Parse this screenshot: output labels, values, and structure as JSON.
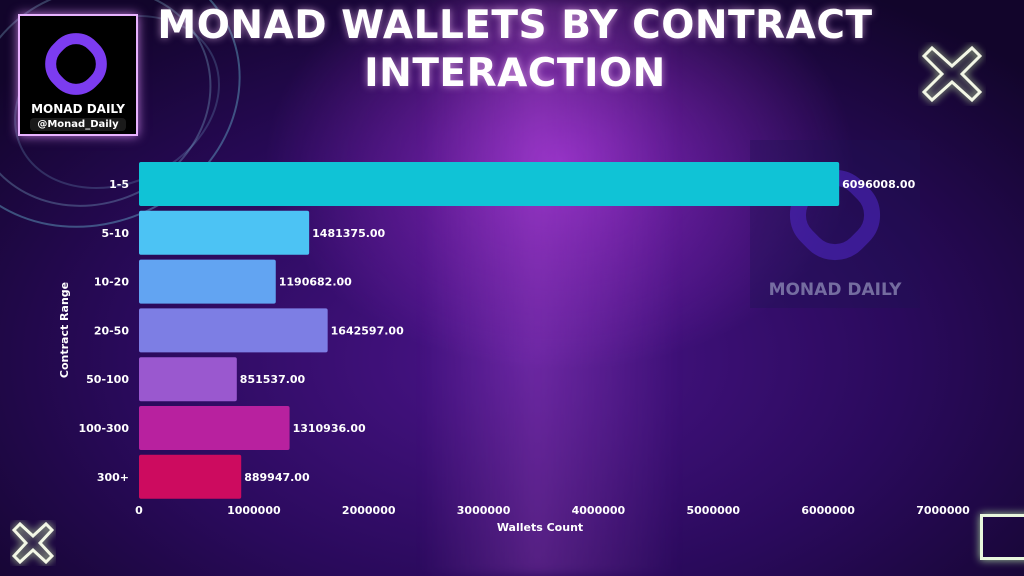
{
  "brand": {
    "name": "MONAD DAILY",
    "handle": "@Monad_Daily",
    "watermark": "MONAD DAILY"
  },
  "chart_data": {
    "type": "bar",
    "orientation": "horizontal",
    "title": "MONAD WALLETS BY CONTRACT INTERACTION",
    "xlabel": "Wallets Count",
    "ylabel": "Contract Range",
    "categories": [
      "1-5",
      "5-10",
      "10-20",
      "20-50",
      "50-100",
      "100-300",
      "300+"
    ],
    "values": [
      6096008.0,
      1481375.0,
      1190682.0,
      1642597.0,
      851537.0,
      1310936.0,
      889947.0
    ],
    "value_labels": [
      "6096008.00",
      "1481375.00",
      "1190682.00",
      "1642597.00",
      "851537.00",
      "1310936.00",
      "889947.00"
    ],
    "colors": [
      "#10c3d6",
      "#4cc3f4",
      "#62a4f2",
      "#7d7ee4",
      "#9a58cf",
      "#b8219f",
      "#cd0b5f"
    ],
    "xlim": [
      0,
      7000000
    ],
    "xticks": [
      "0",
      "1000000",
      "2000000",
      "3000000",
      "4000000",
      "5000000",
      "6000000",
      "7000000"
    ],
    "grid": false,
    "legend": "none"
  }
}
